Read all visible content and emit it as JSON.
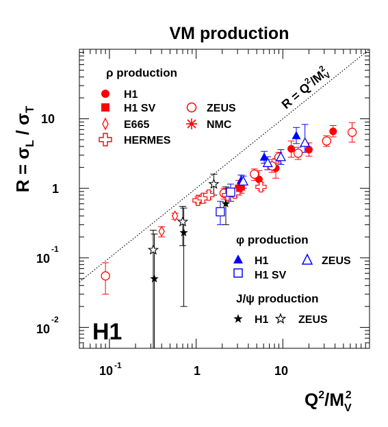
{
  "chart_data": {
    "type": "scatter",
    "title": "VM production",
    "xlabel": "Q²/M_V²",
    "ylabel": "R = σ_L / σ_T",
    "xscale": "log",
    "yscale": "log",
    "xlim": [
      0.045,
      100
    ],
    "ylim": [
      0.005,
      100
    ],
    "x_tick_labels": [
      "10-1",
      "1",
      "10"
    ],
    "y_tick_labels": [
      "10-2",
      "10-1",
      "1",
      "10"
    ],
    "reference_line": {
      "label": "R = Q²/M_V²",
      "style": "dotted",
      "relation": "y = x"
    },
    "watermark": "H1",
    "legend_groups": [
      {
        "title": "ρ production",
        "entries": [
          "H1",
          "H1 SV",
          "ZEUS",
          "E665",
          "NMC",
          "HERMES"
        ]
      },
      {
        "title": "φ production",
        "entries": [
          "H1",
          "ZEUS",
          "H1 SV"
        ]
      },
      {
        "title": "J/ψ production",
        "entries": [
          "H1",
          "ZEUS"
        ]
      }
    ],
    "series": [
      {
        "name": "ρ H1",
        "marker": "circle-filled",
        "color": "#ff0000",
        "points": [
          [
            5.3,
            1.35,
            1.0,
            1.8
          ],
          [
            8.3,
            1.95,
            1.4,
            2.7
          ],
          [
            12.5,
            3.7,
            2.8,
            4.8
          ],
          [
            20,
            3.6,
            2.9,
            4.5
          ],
          [
            38,
            6.6,
            5.5,
            8
          ]
        ]
      },
      {
        "name": "ρ H1 SV",
        "marker": "square-filled",
        "color": "#ff0000",
        "points": [
          [
            3.1,
            1.0,
            0.8,
            1.3
          ],
          [
            3.3,
            1.05,
            0.85,
            1.3
          ]
        ]
      },
      {
        "name": "ρ ZEUS",
        "marker": "circle-open",
        "color": "#ff0000",
        "points": [
          [
            0.09,
            0.055,
            0.03,
            0.085
          ],
          [
            2.1,
            0.85,
            0.7,
            1.0
          ],
          [
            4.7,
            1.6,
            1.3,
            1.9
          ],
          [
            7.5,
            2.1,
            1.7,
            2.6
          ],
          [
            9,
            2.8,
            2.3,
            3.3
          ],
          [
            15,
            3.2,
            2.6,
            3.9
          ],
          [
            32,
            4.8,
            4.0,
            5.7
          ],
          [
            63,
            6.4,
            4.6,
            8.8
          ]
        ]
      },
      {
        "name": "ρ E665",
        "marker": "diamond-open",
        "color": "#ff0000",
        "points": [
          [
            0.4,
            0.24,
            0.2,
            0.28
          ],
          [
            0.57,
            0.4,
            0.36,
            0.44
          ]
        ]
      },
      {
        "name": "ρ HERMES",
        "marker": "cross-open",
        "color": "#ff0000",
        "points": [
          [
            1.05,
            0.67,
            0.6,
            0.75
          ],
          [
            1.2,
            0.72,
            0.62,
            0.82
          ],
          [
            1.4,
            0.8,
            0.7,
            0.9
          ],
          [
            2.3,
            0.8,
            0.68,
            0.95
          ],
          [
            2.8,
            0.85,
            0.75,
            0.95
          ],
          [
            5.6,
            1.05,
            0.93,
            1.2
          ]
        ]
      },
      {
        "name": "φ H1",
        "marker": "triangle-filled",
        "color": "#0000ff",
        "points": [
          [
            3.3,
            1.3,
            1.1,
            1.55
          ],
          [
            6.1,
            2.8,
            2.3,
            3.4
          ],
          [
            14.3,
            5.7,
            4.4,
            7.5
          ]
        ]
      },
      {
        "name": "φ ZEUS",
        "marker": "triangle-open",
        "color": "#0000ff",
        "points": [
          [
            3.5,
            1.25,
            1.0,
            1.5
          ],
          [
            6.7,
            2.3,
            1.85,
            2.85
          ],
          [
            9.5,
            2.8,
            2.2,
            3.6
          ],
          [
            18,
            4.5,
            3.3,
            8.3
          ]
        ]
      },
      {
        "name": "φ H1 SV",
        "marker": "square-open",
        "color": "#0000ff",
        "points": [
          [
            2.5,
            0.88,
            0.65,
            1.15
          ],
          [
            1.9,
            0.46,
            0.3,
            0.65
          ]
        ]
      },
      {
        "name": "J/ψ H1",
        "marker": "star-filled",
        "color": "#000000",
        "points": [
          [
            0.33,
            0.05,
            0.005,
            0.22
          ],
          [
            0.72,
            0.23,
            0.02,
            0.52
          ],
          [
            2.2,
            0.6,
            0.3,
            1.05
          ]
        ]
      },
      {
        "name": "J/ψ ZEUS",
        "marker": "star-open",
        "color": "#000000",
        "points": [
          [
            0.32,
            0.13,
            0.005,
            0.25
          ],
          [
            0.7,
            0.33,
            0.15,
            0.55
          ],
          [
            1.6,
            1.15,
            0.8,
            1.6
          ]
        ]
      }
    ]
  }
}
